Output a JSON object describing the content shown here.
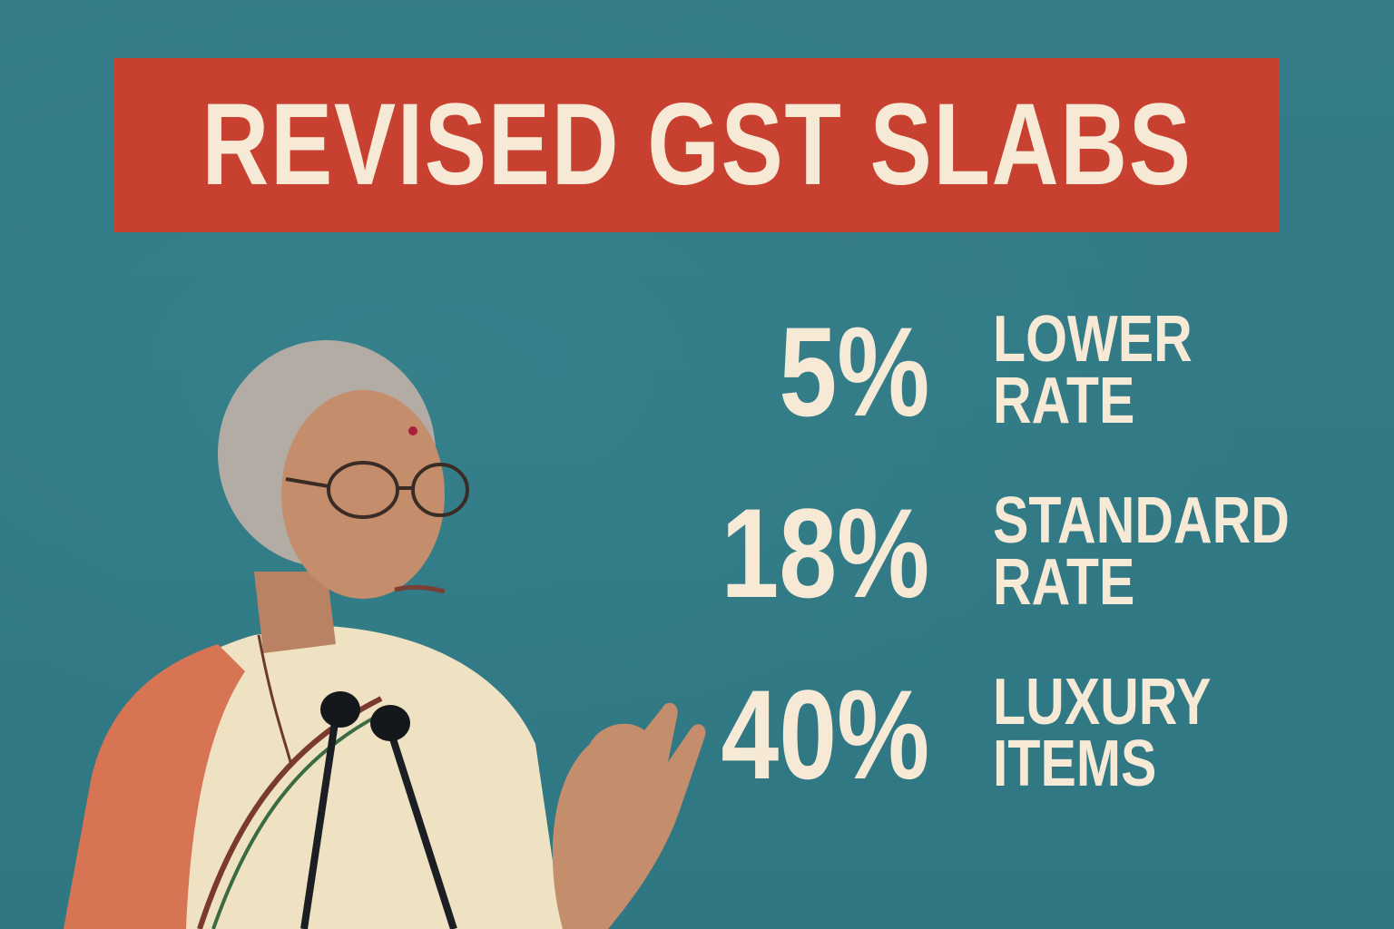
{
  "title": "REVISED GST SLABS",
  "rates": [
    {
      "percent": "5%",
      "line1": "LOWER",
      "line2": "RATE"
    },
    {
      "percent": "18%",
      "line1": "STANDARD",
      "line2": "RATE"
    },
    {
      "percent": "40%",
      "line1": "LUXURY",
      "line2": "ITEMS"
    }
  ],
  "colors": {
    "background": "#327a86",
    "banner": "#c8402f",
    "text": "#f6ead6"
  },
  "image": {
    "subject": "woman-speaking-at-microphones-photo"
  }
}
